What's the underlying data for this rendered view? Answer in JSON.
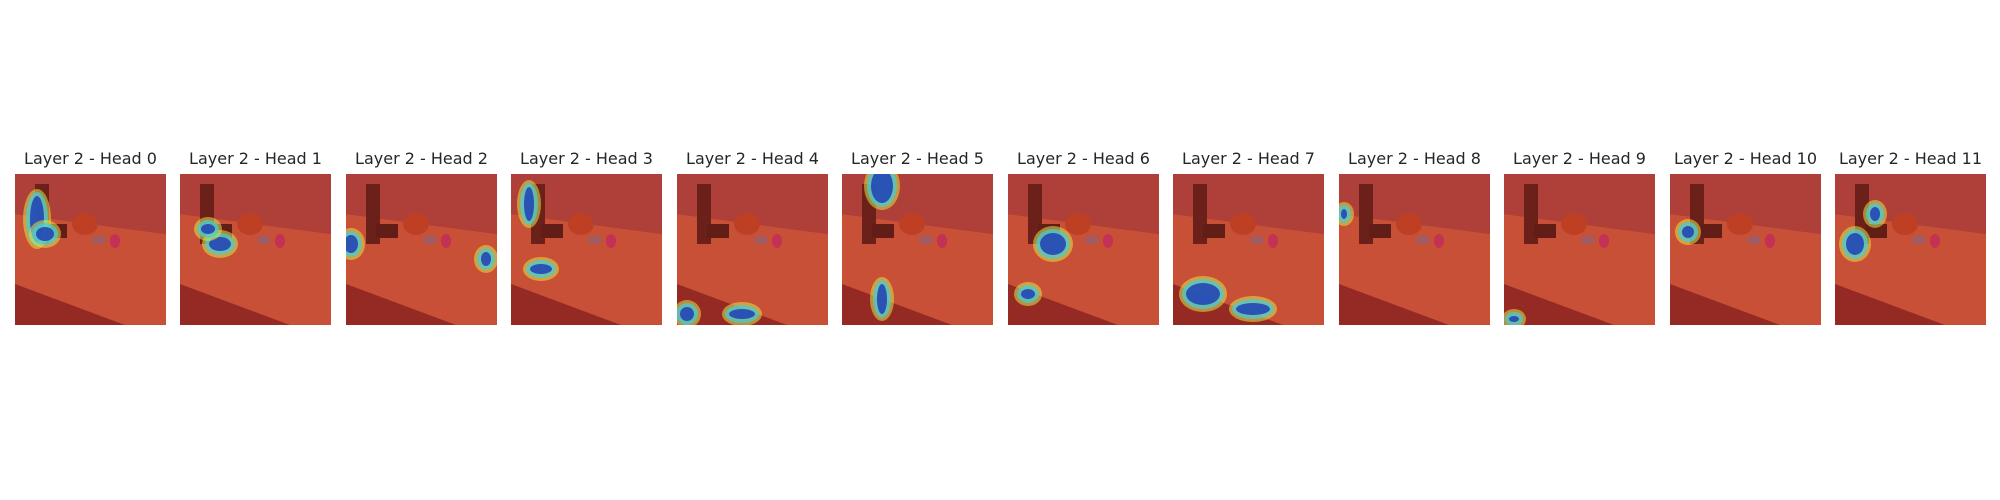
{
  "panels": [
    {
      "title": "Layer 2 - Head 0"
    },
    {
      "title": "Layer 2 - Head 1"
    },
    {
      "title": "Layer 2 - Head 2"
    },
    {
      "title": "Layer 2 - Head 3"
    },
    {
      "title": "Layer 2 - Head 4"
    },
    {
      "title": "Layer 2 - Head 5"
    },
    {
      "title": "Layer 2 - Head 6"
    },
    {
      "title": "Layer 2 - Head 7"
    },
    {
      "title": "Layer 2 - Head 8"
    },
    {
      "title": "Layer 2 - Head 9"
    },
    {
      "title": "Layer 2 - Head 10"
    },
    {
      "title": "Layer 2 - Head 11"
    }
  ],
  "colors": {
    "background": "#ffffff",
    "title_text": "#262626",
    "heat_base": "#c8402f",
    "heat_dark": "#5a1414",
    "heat_blue": "#1f3fb5",
    "heat_cyan": "#3fd0e0",
    "heat_yellow": "#e6e040"
  }
}
